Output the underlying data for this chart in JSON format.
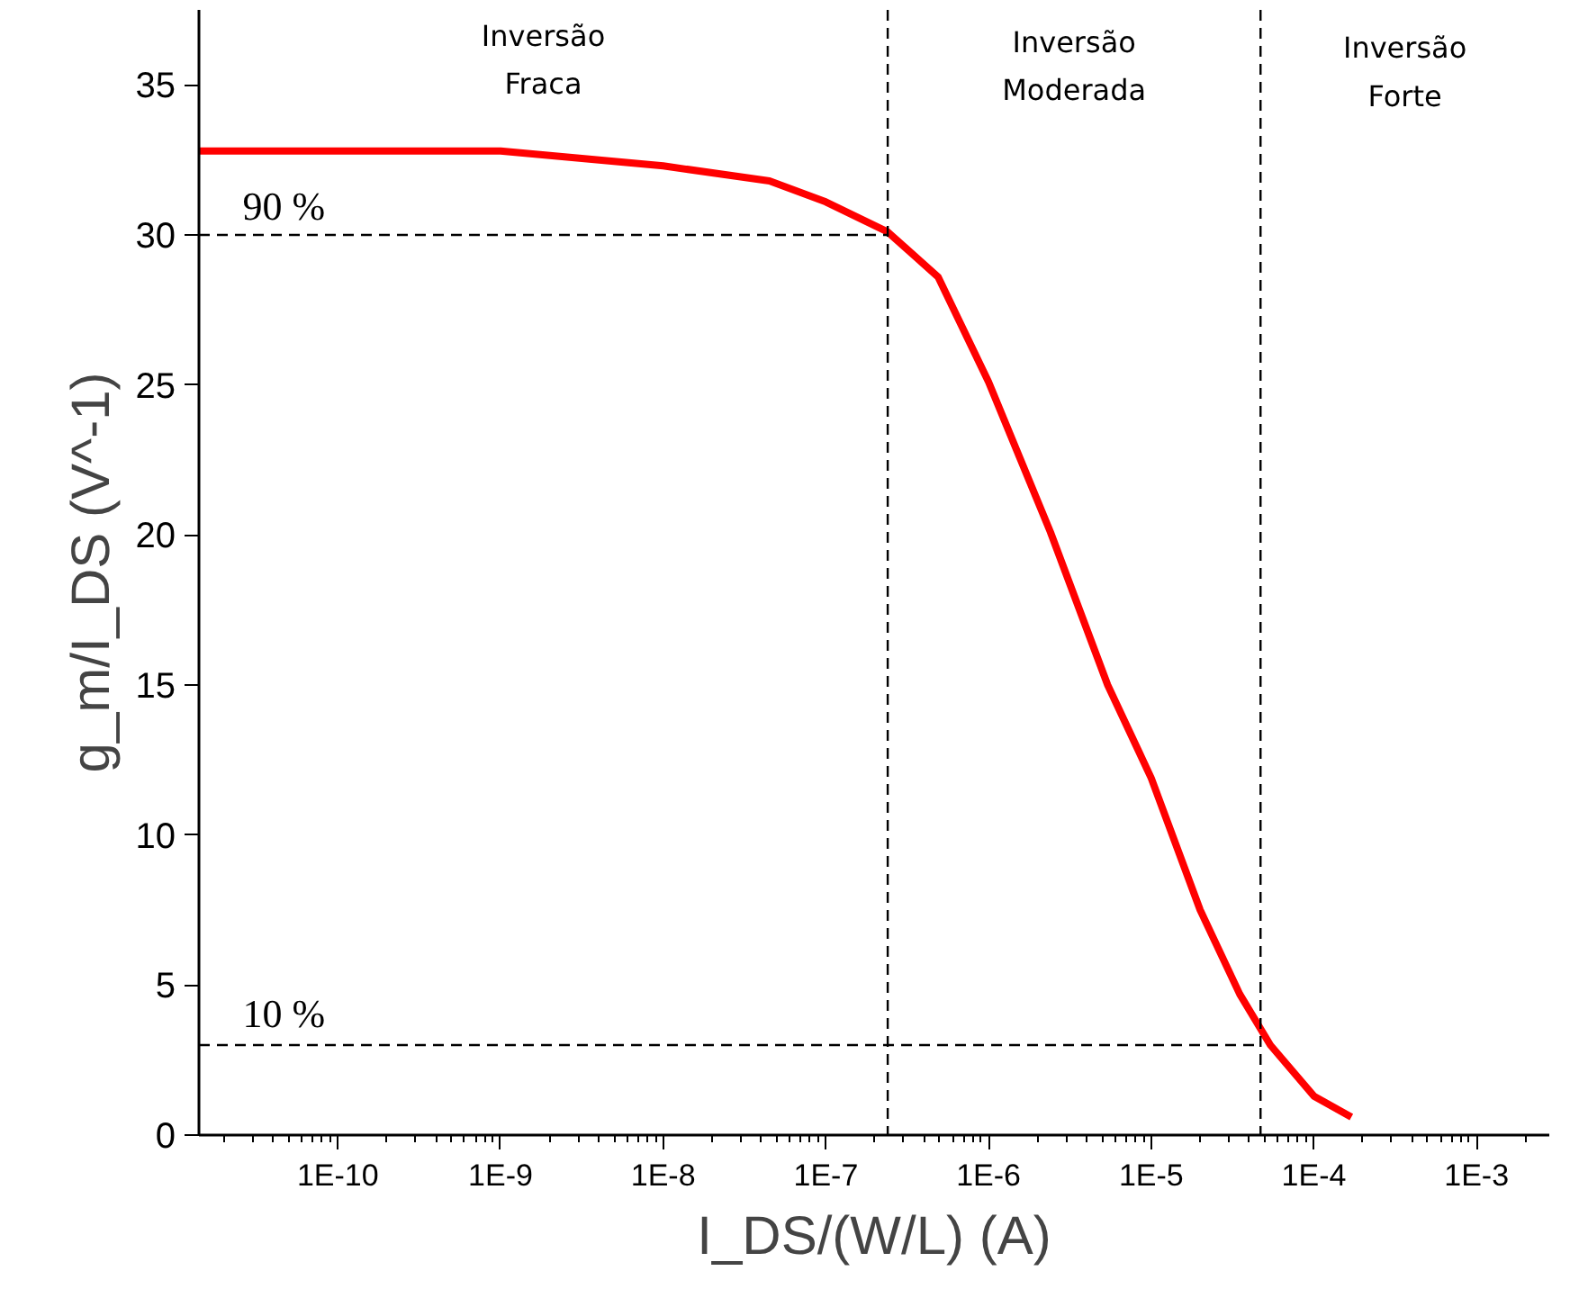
{
  "chart_data": {
    "type": "line",
    "xlabel": "I_DS/(W/L) (A)",
    "ylabel": "g_m/I_DS (V^-1)",
    "log": "x",
    "grid": false,
    "marker": "none",
    "xlim": [
      1.4e-11,
      0.0028
    ],
    "ylim": [
      0,
      37.5
    ],
    "xticks": [
      {
        "value": 1e-10,
        "label": "1E-10"
      },
      {
        "value": 1e-09,
        "label": "1E-9"
      },
      {
        "value": 1e-08,
        "label": "1E-8"
      },
      {
        "value": 1e-07,
        "label": "1E-7"
      },
      {
        "value": 1e-06,
        "label": "1E-6"
      },
      {
        "value": 1e-05,
        "label": "1E-5"
      },
      {
        "value": 0.0001,
        "label": "1E-4"
      },
      {
        "value": 0.001,
        "label": "1E-3"
      }
    ],
    "yticks": [
      0,
      5,
      10,
      15,
      20,
      25,
      30,
      35
    ],
    "series": [
      {
        "color": "#ff0000",
        "line_style": "solid",
        "x": [
          1.4e-11,
          2.8e-10,
          1e-09,
          1e-08,
          4.5e-08,
          1e-07,
          2.4e-07,
          4.9e-07,
          1e-06,
          2.4e-06,
          5.4e-06,
          1e-05,
          2e-05,
          3.5e-05,
          5.4e-05,
          0.0001,
          0.00017
        ],
        "values": [
          32.8,
          32.8,
          32.8,
          32.3,
          31.8,
          31.1,
          30.1,
          28.6,
          25.1,
          20.1,
          15.0,
          11.9,
          7.5,
          4.7,
          3.0,
          1.3,
          0.6
        ]
      },
      {
        "color": "#000000",
        "line_style": "dashed",
        "x": [
          1.4e-11,
          2.4e-07
        ],
        "values": [
          30,
          30
        ]
      },
      {
        "color": "#000000",
        "line_style": "dashed",
        "x": [
          1.4e-11,
          4.7e-05
        ],
        "values": [
          3,
          3
        ]
      }
    ],
    "ref_lines": [
      {
        "axis": "x",
        "value": 2.4e-07,
        "color": "#000000",
        "line_style": "dashed"
      },
      {
        "axis": "x",
        "value": 4.7e-05,
        "color": "#000000",
        "line_style": "dashed"
      }
    ],
    "annotations": [
      "Inversão\nFraca",
      "Inversão\nModerada",
      "Inversão\nForte",
      {
        "text": "90 %",
        "x": 2.6e-11,
        "y": 30.2
      },
      {
        "text": "10 %",
        "x": 2.6e-11,
        "y": 3.3
      }
    ]
  }
}
